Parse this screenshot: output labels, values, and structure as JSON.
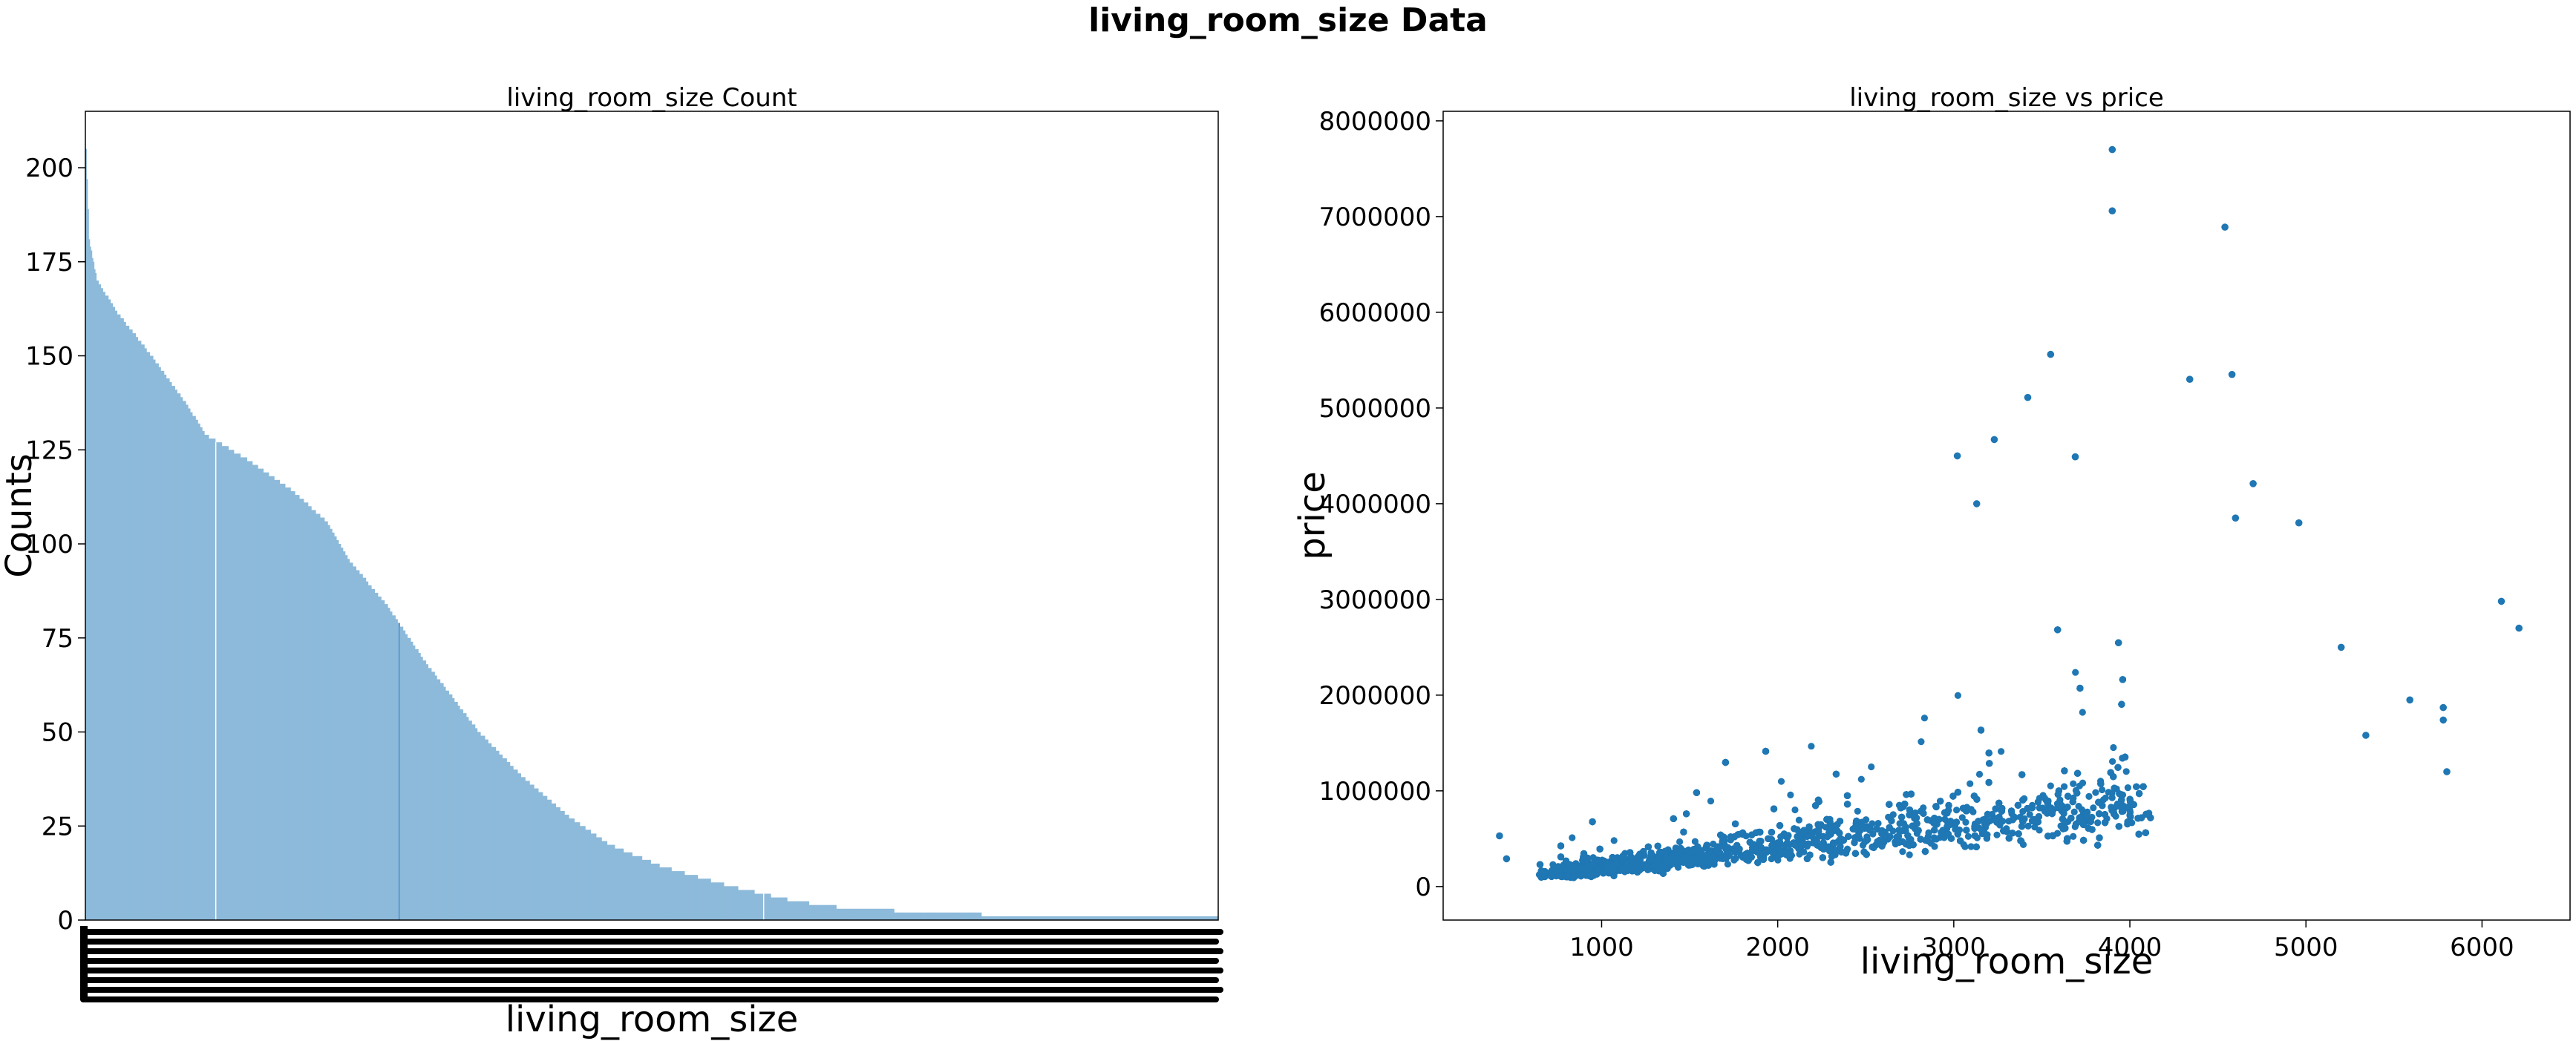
{
  "suptitle": "living_room_size Data",
  "chart_data": [
    {
      "type": "bar",
      "title": "living_room_size Count",
      "xlabel": "living_room_size",
      "ylabel": "Counts",
      "ylim": [
        0,
        215
      ],
      "yticks": [
        0,
        25,
        50,
        75,
        100,
        125,
        150,
        175,
        200
      ],
      "x_tick_labels": "dense overlapping category labels (unreadable)",
      "color": "#8dbada",
      "highlight_color": "#4a8ec8",
      "n_categories": 1038,
      "sorted_counts_profile": [
        {
          "rank": 0,
          "count": 205
        },
        {
          "rank": 3,
          "count": 181
        },
        {
          "rank": 10,
          "count": 170
        },
        {
          "rank": 30,
          "count": 161
        },
        {
          "rank": 60,
          "count": 150
        },
        {
          "rank": 90,
          "count": 138
        },
        {
          "rank": 110,
          "count": 129
        },
        {
          "rank": 150,
          "count": 122
        },
        {
          "rank": 190,
          "count": 114
        },
        {
          "rank": 220,
          "count": 106
        },
        {
          "rank": 240,
          "count": 96
        },
        {
          "rank": 275,
          "count": 84
        },
        {
          "rank": 310,
          "count": 69
        },
        {
          "rank": 360,
          "count": 50
        },
        {
          "rank": 400,
          "count": 38
        },
        {
          "rank": 440,
          "count": 28
        },
        {
          "rank": 480,
          "count": 20
        },
        {
          "rank": 530,
          "count": 14
        },
        {
          "rank": 590,
          "count": 9
        },
        {
          "rank": 650,
          "count": 5
        },
        {
          "rank": 700,
          "count": 3
        },
        {
          "rank": 780,
          "count": 2
        },
        {
          "rank": 860,
          "count": 1
        },
        {
          "rank": 1037,
          "count": 1
        }
      ],
      "gap_ranks": [
        119,
        621
      ],
      "highlight_rank": 287
    },
    {
      "type": "scatter",
      "title": "living_room_size vs price",
      "xlabel": "living_room_size",
      "ylabel": "price",
      "xlim": [
        100,
        6500
      ],
      "ylim": [
        -350000,
        8100000
      ],
      "xticks": [
        1000,
        2000,
        3000,
        4000,
        5000,
        6000
      ],
      "yticks": [
        0,
        1000000,
        2000000,
        3000000,
        4000000,
        5000000,
        6000000,
        7000000,
        8000000
      ],
      "color": "#1f77b4",
      "n_points": 21613,
      "cluster_description": "dense cloud from ~800 to ~4000 sqft, price rising with size",
      "notable_points": [
        [
          3900,
          7700000
        ],
        [
          3900,
          7060000
        ],
        [
          4540,
          6890000
        ],
        [
          3550,
          5560000
        ],
        [
          4580,
          5350000
        ],
        [
          4340,
          5300000
        ],
        [
          3420,
          5110000
        ],
        [
          3230,
          4670000
        ],
        [
          3020,
          4500000
        ],
        [
          3690,
          4490000
        ],
        [
          4700,
          4210000
        ],
        [
          3130,
          4000000
        ],
        [
          4960,
          3800000
        ],
        [
          4600,
          3850000
        ],
        [
          6110,
          2980000
        ],
        [
          6210,
          2700000
        ],
        [
          5780,
          1870000
        ],
        [
          5780,
          1740000
        ],
        [
          5590,
          1950000
        ],
        [
          5800,
          1200000
        ],
        [
          5340,
          1580000
        ],
        [
          5200,
          2500000
        ],
        [
          420,
          530000
        ],
        [
          460,
          290000
        ],
        [
          650,
          230000
        ]
      ]
    }
  ]
}
